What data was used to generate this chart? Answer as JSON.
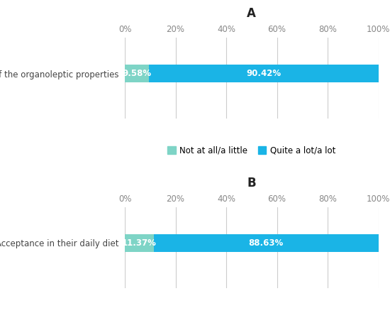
{
  "panel_A": {
    "title": "A",
    "category": "Influence of the organoleptic properties",
    "values": [
      9.58,
      90.42
    ],
    "labels": [
      "9.58%",
      "90.42%"
    ],
    "colors": [
      "#7ed4c6",
      "#1ab4e6"
    ]
  },
  "panel_B": {
    "title": "B",
    "category": "Acceptance in their daily diet",
    "values": [
      11.37,
      88.63
    ],
    "labels": [
      "11.37%",
      "88.63%"
    ],
    "colors": [
      "#7ed4c6",
      "#1ab4e6"
    ]
  },
  "legend_labels": [
    "Not at all/a little",
    "Quite a lot/a lot"
  ],
  "legend_colors": [
    "#7ed4c6",
    "#1ab4e6"
  ],
  "xlim": [
    0,
    100
  ],
  "xticks": [
    0,
    20,
    40,
    60,
    80,
    100
  ],
  "xticklabels": [
    "0%",
    "20%",
    "40%",
    "60%",
    "80%",
    "100%"
  ],
  "bar_height": 0.38,
  "background_color": "#ffffff",
  "text_color": "#ffffff",
  "label_fontsize": 8.5,
  "tick_fontsize": 8.5,
  "title_fontsize": 12,
  "category_fontsize": 8.5,
  "legend_fontsize": 8.5,
  "grid_color": "#cccccc"
}
